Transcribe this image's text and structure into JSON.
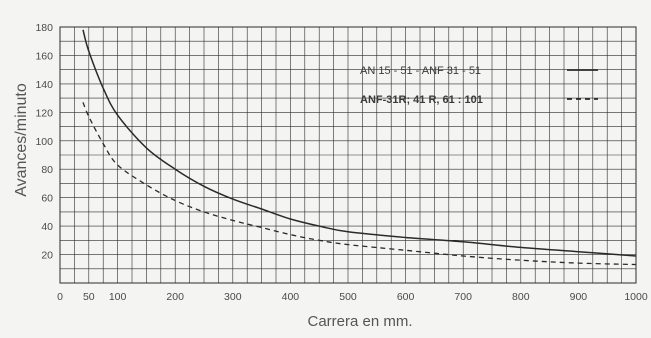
{
  "chart_data": {
    "type": "line",
    "xlabel": "Carrera en mm.",
    "ylabel": "Avances/minuto",
    "xlim": [
      0,
      1000
    ],
    "ylim": [
      0,
      180
    ],
    "x_ticks": [
      0,
      50,
      100,
      200,
      300,
      400,
      500,
      600,
      700,
      800,
      900,
      1000
    ],
    "x_tick_labels": [
      "0",
      "50",
      "100",
      "200",
      "300",
      "400",
      "500",
      "600",
      "700",
      "800",
      "900",
      "1000"
    ],
    "y_ticks": [
      20,
      40,
      60,
      80,
      100,
      120,
      140,
      160,
      180
    ],
    "y_tick_labels": [
      "20",
      "40",
      "60",
      "80",
      "100",
      "120",
      "140",
      "160",
      "180"
    ],
    "grid": true,
    "legend_position": "top-right",
    "colors": {
      "background": "#f4f5f3",
      "grid": "#2b2b2b",
      "line": "#2a2a2a",
      "text": "#4a4a4a"
    },
    "series": [
      {
        "name": "AN 15 - 51 - ANF 31 - 51",
        "style": "solid",
        "x": [
          40,
          50,
          75,
          100,
          150,
          200,
          250,
          300,
          350,
          400,
          450,
          500,
          600,
          700,
          800,
          900,
          1000
        ],
        "y": [
          178,
          163,
          137,
          118,
          95,
          80,
          68,
          59,
          52,
          45,
          40,
          36,
          32,
          29,
          25,
          22,
          19
        ]
      },
      {
        "name": "ANF-31R; 41 R, 61 : 101",
        "style": "dashed",
        "x": [
          40,
          50,
          75,
          100,
          150,
          200,
          250,
          300,
          350,
          400,
          450,
          500,
          600,
          700,
          800,
          900,
          1000
        ],
        "y": [
          127,
          117,
          98,
          83,
          69,
          58,
          50,
          44,
          39,
          34,
          30,
          27,
          23,
          19,
          16,
          14,
          13
        ]
      }
    ]
  }
}
